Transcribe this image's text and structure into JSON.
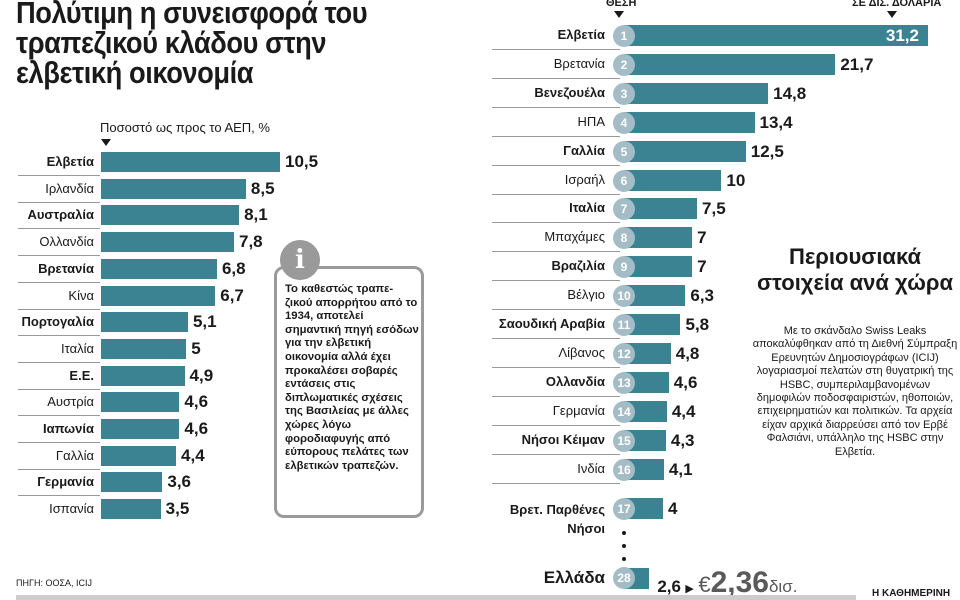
{
  "left_title": "Πολύτιμη η συνεισφορά του τραπεζικού κλάδου στην ελβετική οικονομία",
  "info_text": "Το καθεστώς τραπε-ζικού απορρήτου από το 1934, αποτελεί σημαντική πηγή εσόδων για την ελβετική οικονομία αλλά έχει προκαλέσει σοβαρές εντάσεις στις διπλωματικές σχέσεις της Βασιλείας με άλλες χώρες λόγω φοροδιαφυγής από εύπορους πελάτες των ελβετικών τραπεζών.",
  "info_icon": "info-icon",
  "right_title": "Περιουσιακά στοιχεία ανά χώρα",
  "right_text": "Με το σκάνδαλο Swiss Leaks αποκαλύφθηκαν από τη Διεθνή Σύμπραξη Ερευνητών Δημοσιογράφων (ICIJ) λογαριασμοί πελατών στη θυγατρική της HSBC, συμπεριλαμβανομένων δημοφιλών ποδοσφαιριστών, ηθοποιών, επιχειρηματιών και πολιτικών. Τα αρχεία είχαν αρχικά διαρρεύσει από τον Ερβέ Φαλσιάνι, υπάλληλο της HSBC στην Ελβετία.",
  "source": "ΠΗΓΗ: ΟΟΣΑ, ICIJ",
  "brand": "Η ΚΑΘΗΜΕΡΙΝΗ",
  "colors": {
    "bar": "#3b8393",
    "rank_circle": "#a3bcc6",
    "info": "#9a9a9a"
  },
  "chart_data": [
    {
      "type": "bar",
      "orientation": "horizontal",
      "ylabel": "Ποσοστό ως προς το ΑΕΠ, %",
      "categories": [
        "Ελβετία",
        "Ιρλανδία",
        "Αυστραλία",
        "Ολλανδία",
        "Βρετανία",
        "Κίνα",
        "Πορτογαλία",
        "Ιταλία",
        "Ε.Ε.",
        "Αυστρία",
        "Ιαπωνία",
        "Γαλλία",
        "Γερμανία",
        "Ισπανία"
      ],
      "values": [
        10.5,
        8.5,
        8.1,
        7.8,
        6.8,
        6.7,
        5.1,
        5,
        4.9,
        4.6,
        4.6,
        4.4,
        3.6,
        3.5
      ],
      "value_labels": [
        "10,5",
        "8,5",
        "8,1",
        "7,8",
        "6,8",
        "6,7",
        "5,1",
        "5",
        "4,9",
        "4,6",
        "4,6",
        "4,4",
        "3,6",
        "3,5"
      ]
    },
    {
      "type": "bar",
      "orientation": "horizontal",
      "rank_header": "ΘΕΣΗ",
      "value_header": "ΣΕ ΔΙΣ. ΔΟΛΑΡΙΑ",
      "categories": [
        "Ελβετία",
        "Βρετανία",
        "Βενεζουέλα",
        "ΗΠΑ",
        "Γαλλία",
        "Ισραήλ",
        "Ιταλία",
        "Μπαχάμες",
        "Βραζιλία",
        "Βέλγιο",
        "Σαουδική Αραβία",
        "Λίβανος",
        "Ολλανδία",
        "Γερμανία",
        "Νήσοι Κέιμαν",
        "Ινδία",
        "Βρετ. Παρθένες Νήσοι"
      ],
      "ranks": [
        "1",
        "2",
        "3",
        "4",
        "5",
        "6",
        "7",
        "8",
        "9",
        "10",
        "11",
        "12",
        "13",
        "14",
        "15",
        "16",
        "17"
      ],
      "values": [
        31.2,
        21.7,
        14.8,
        13.4,
        12.5,
        10,
        7.5,
        7,
        7,
        6.3,
        5.8,
        4.8,
        4.6,
        4.4,
        4.3,
        4.1,
        4
      ],
      "value_labels": [
        "31,2",
        "21,7",
        "14,8",
        "13,4",
        "12,5",
        "10",
        "7,5",
        "7",
        "7",
        "6,3",
        "5,8",
        "4,8",
        "4,6",
        "4,4",
        "4,3",
        "4,1",
        "4"
      ],
      "highlight": {
        "category": "Ελλάδα",
        "rank": "28",
        "value": 2.6,
        "value_label": "2,6",
        "euro_symbol": "€",
        "euro_value": "2,36",
        "euro_unit": "δισ."
      }
    }
  ]
}
